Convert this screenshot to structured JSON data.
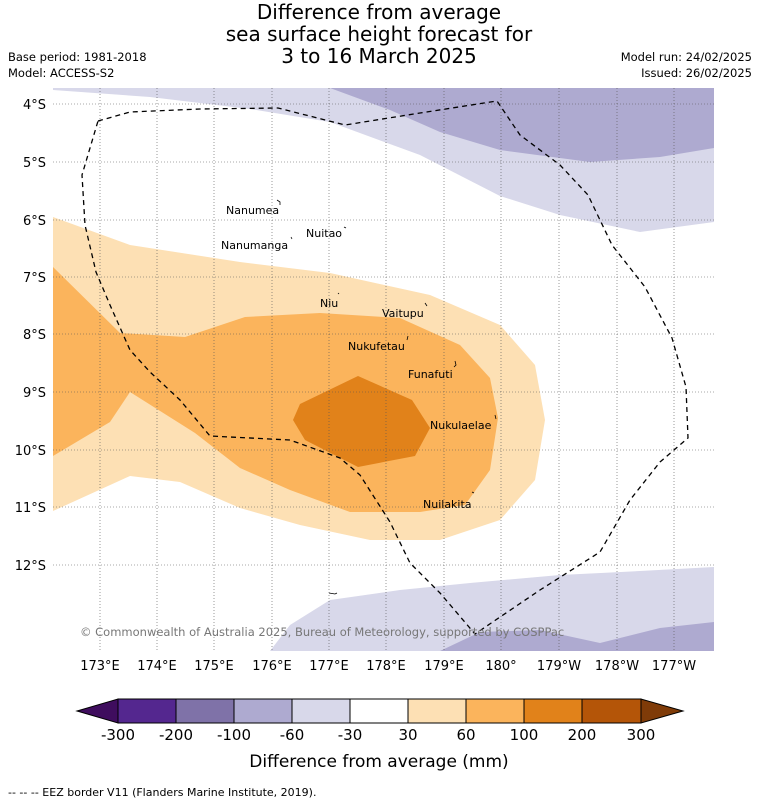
{
  "title": {
    "line1": "Difference from average",
    "line2": "sea surface height forecast for",
    "line3": "3 to 16 March 2025"
  },
  "meta": {
    "base_period": "Base period: 1981-2018",
    "model": "Model: ACCESS-S2",
    "model_run": "Model run: 24/02/2025",
    "issued": "Issued: 26/02/2025"
  },
  "map": {
    "latitude_labels": [
      "4°S",
      "5°S",
      "6°S",
      "7°S",
      "8°S",
      "9°S",
      "10°S",
      "11°S",
      "12°S"
    ],
    "longitude_labels": [
      "173°E",
      "174°E",
      "175°E",
      "176°E",
      "177°E",
      "178°E",
      "179°E",
      "180°",
      "179°W",
      "178°W",
      "177°W"
    ],
    "places": [
      "Nanumea",
      "Nuitao",
      "Nanumanga",
      "Niu",
      "Vaitupu",
      "Nukufetau",
      "Funafuti",
      "Nukulaelae",
      "Nuilakita"
    ],
    "copyright": "© Commonwealth of Australia 2025, Bureau of Meteorology, supported by COSPPac"
  },
  "colorbar": {
    "ticks": [
      "-300",
      "-200",
      "-100",
      "-60",
      "-30",
      "30",
      "60",
      "100",
      "200",
      "300"
    ],
    "colors": [
      "#3f0d5e",
      "#54278f",
      "#7f72a8",
      "#aeaad0",
      "#d8d8ea",
      "#ffffff",
      "#fde0b4",
      "#fbb45c",
      "#e1821a",
      "#b45508",
      "#7f3b08"
    ],
    "title": "Difference from average (mm)"
  },
  "footer": "--  --  -- EEZ border V11 (Flanders Marine Institute, 2019)."
}
